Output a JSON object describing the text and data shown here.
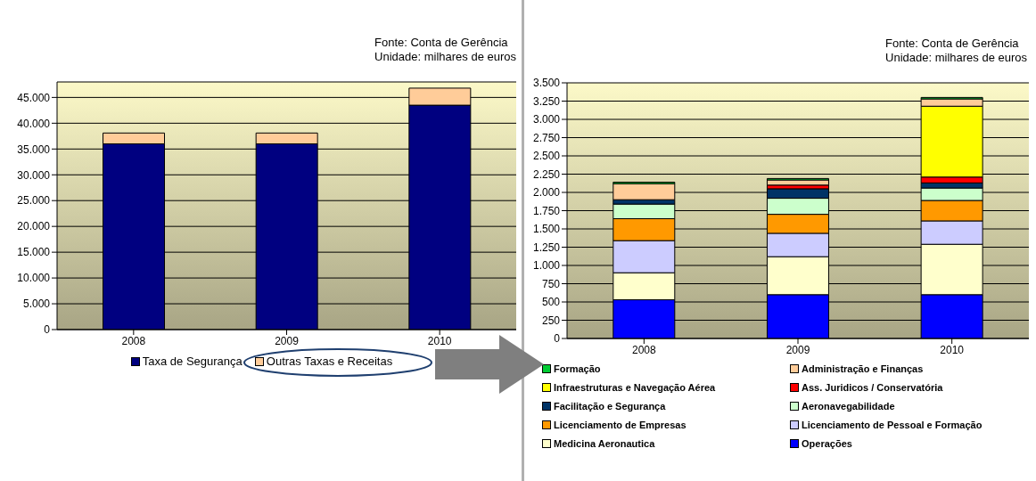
{
  "chart_data": [
    {
      "type": "bar",
      "stacked": true,
      "categories": [
        "2008",
        "2009",
        "2010"
      ],
      "ylim": [
        0,
        48000
      ],
      "yticks": [
        {
          "value": 0,
          "label": "0"
        },
        {
          "value": 5000,
          "label": "5.000"
        },
        {
          "value": 10000,
          "label": "10.000"
        },
        {
          "value": 15000,
          "label": "15.000"
        },
        {
          "value": 20000,
          "label": "20.000"
        },
        {
          "value": 25000,
          "label": "25.000"
        },
        {
          "value": 30000,
          "label": "30.000"
        },
        {
          "value": 35000,
          "label": "35.000"
        },
        {
          "value": 40000,
          "label": "40.000"
        },
        {
          "value": 45000,
          "label": "45.000"
        }
      ],
      "grid": "y",
      "legend": "bottom",
      "annotations": [
        "Fonte: Conta de Gerência",
        "Unidade: milhares de euros"
      ],
      "series": [
        {
          "name": "Taxa de Segurança",
          "color": "#000080",
          "values": [
            36000,
            36000,
            43500
          ]
        },
        {
          "name": "Outras Taxas e Receitas",
          "color": "#ffcc99",
          "values": [
            2100,
            2100,
            3300
          ]
        }
      ]
    },
    {
      "type": "bar",
      "stacked": true,
      "categories": [
        "2008",
        "2009",
        "2010"
      ],
      "ylim": [
        0,
        3500
      ],
      "yticks": [
        {
          "value": 0,
          "label": "0"
        },
        {
          "value": 250,
          "label": "250"
        },
        {
          "value": 500,
          "label": "500"
        },
        {
          "value": 750,
          "label": "750"
        },
        {
          "value": 1000,
          "label": "1.000"
        },
        {
          "value": 1250,
          "label": "1.250"
        },
        {
          "value": 1500,
          "label": "1.500"
        },
        {
          "value": 1750,
          "label": "1.750"
        },
        {
          "value": 2000,
          "label": "2.000"
        },
        {
          "value": 2250,
          "label": "2.250"
        },
        {
          "value": 2500,
          "label": "2.500"
        },
        {
          "value": 2750,
          "label": "2.750"
        },
        {
          "value": 3000,
          "label": "3.000"
        },
        {
          "value": 3250,
          "label": "3.250"
        },
        {
          "value": 3500,
          "label": "3.500"
        }
      ],
      "grid": "y",
      "legend": "bottom",
      "annotations": [
        "Fonte: Conta de Gerência",
        "Unidade: milhares de euros"
      ],
      "series": [
        {
          "name": "Operações",
          "color": "#0000ff",
          "values": [
            530,
            600,
            600
          ]
        },
        {
          "name": "Medicina Aeronautica",
          "color": "#ffffcc",
          "values": [
            370,
            520,
            690
          ]
        },
        {
          "name": "Licenciamento de Pessoal e Formação",
          "color": "#ccccff",
          "values": [
            440,
            320,
            320
          ]
        },
        {
          "name": "Licenciamento de Empresas",
          "color": "#ff9900",
          "values": [
            300,
            260,
            280
          ]
        },
        {
          "name": "Aeronavegabilidade",
          "color": "#ccffcc",
          "values": [
            200,
            220,
            170
          ]
        },
        {
          "name": "Facilitação e Segurança",
          "color": "#003366",
          "values": [
            60,
            130,
            70
          ]
        },
        {
          "name": "Ass. Juridicos / Conservatória",
          "color": "#ff0000",
          "values": [
            null,
            50,
            80
          ]
        },
        {
          "name": "Infraestruturas e Navegação Aérea",
          "color": "#ffff00",
          "values": [
            0,
            0,
            970
          ]
        },
        {
          "name": "Administração e Finanças",
          "color": "#ffcc99",
          "values": [
            220,
            70,
            100
          ]
        },
        {
          "name": "Formação",
          "color": "#00cc33",
          "values": [
            20,
            20,
            20
          ]
        }
      ]
    }
  ]
}
